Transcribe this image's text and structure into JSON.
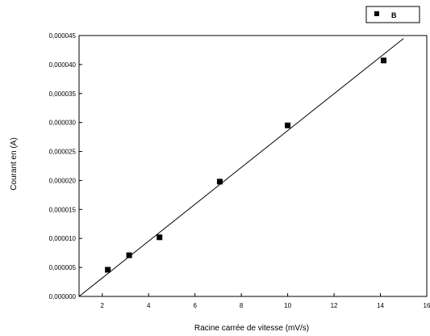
{
  "chart_data": {
    "type": "scatter",
    "title": "",
    "xlabel": "Racine carrée de vitesse (mV/s)",
    "ylabel": "Courant en (A)",
    "xlim": [
      1,
      16
    ],
    "ylim": [
      0,
      4.5e-05
    ],
    "x_ticks": [
      2,
      4,
      6,
      8,
      10,
      12,
      14,
      16
    ],
    "x_tick_labels": [
      "2",
      "4",
      "6",
      "8",
      "10",
      "12",
      "14",
      "16"
    ],
    "y_ticks": [
      0,
      5e-06,
      1e-05,
      1.5e-05,
      2e-05,
      2.5e-05,
      3e-05,
      3.5e-05,
      4e-05,
      4.5e-05
    ],
    "y_tick_labels": [
      "0,000000",
      "0,000005",
      "0,000010",
      "0,000015",
      "0,000020",
      "0,000025",
      "0,000030",
      "0,000035",
      "0,000040",
      "0,000045"
    ],
    "grid": false,
    "legend_position": "top-right",
    "series": [
      {
        "name": "B",
        "marker": "square",
        "color": "#000000",
        "x": [
          2.24,
          3.16,
          4.47,
          7.07,
          10.0,
          14.14
        ],
        "y": [
          4.6e-06,
          7.1e-06,
          1.02e-05,
          1.98e-05,
          2.95e-05,
          4.07e-05
        ]
      }
    ],
    "fit_line": {
      "color": "#000000",
      "x": [
        1.0,
        15.0
      ],
      "y": [
        0.0,
        4.45e-05
      ]
    }
  }
}
